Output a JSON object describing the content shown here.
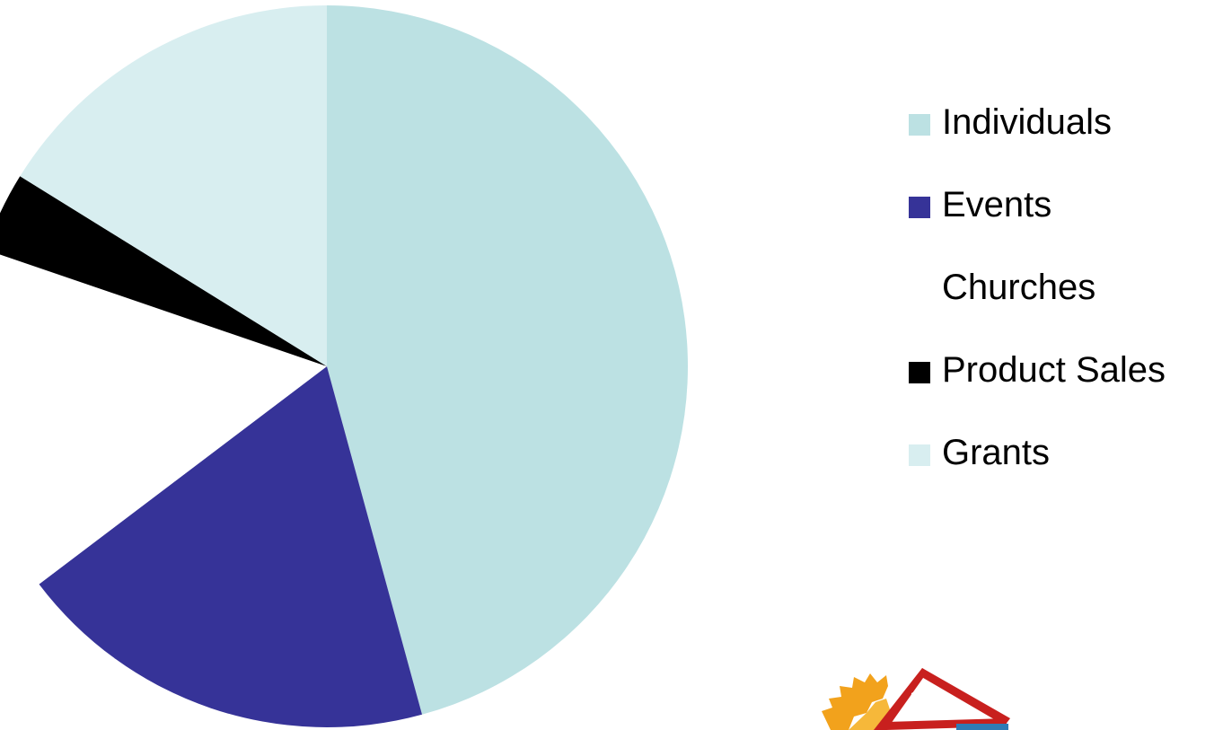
{
  "chart_data": {
    "type": "pie",
    "title": "",
    "series": [
      {
        "name": "Individuals",
        "value": 44.7,
        "color": "#bce1e3"
      },
      {
        "name": "Events",
        "value": 18.5,
        "color": "#363398"
      },
      {
        "name": "Churches",
        "value": 15.2,
        "color": "#ffffff"
      },
      {
        "name": "Product Sales",
        "value": 3.5,
        "color": "#000000"
      },
      {
        "name": "Grants",
        "value": 15.8,
        "color": "#d8eef0"
      }
    ],
    "start_angle_deg": 0,
    "direction": "clockwise",
    "legend_position": "right"
  },
  "logo": {
    "icon": "sun-triangle-logo"
  }
}
